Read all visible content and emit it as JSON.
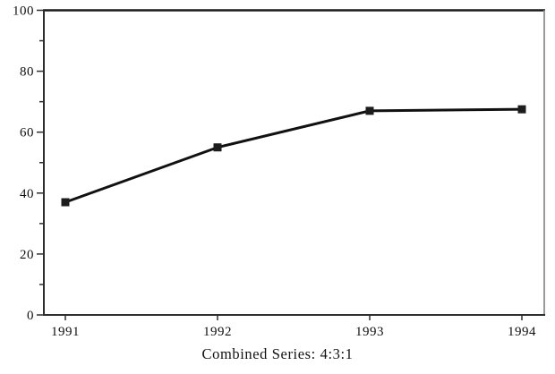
{
  "chart_data": {
    "type": "line",
    "title": "Combined Series: 4:3:1",
    "categories": [
      "1991",
      "1992",
      "1993",
      "1994"
    ],
    "values": [
      37,
      55,
      67,
      67.5
    ],
    "xlabel": "",
    "ylabel": "",
    "ylim": [
      0,
      100
    ],
    "y_major_ticks": [
      0,
      20,
      40,
      60,
      80,
      100
    ],
    "y_minor_ticks": [
      10,
      30,
      50,
      70,
      90
    ],
    "grid": false,
    "legend": false,
    "marker": "square",
    "colors": {
      "line": "#111111",
      "marker": "#1c1c1c",
      "axis": "#2e2e2e",
      "border_top": "#1a1a1a",
      "border_right": "#9a9a9a",
      "text": "#111111",
      "background": "#ffffff"
    }
  }
}
